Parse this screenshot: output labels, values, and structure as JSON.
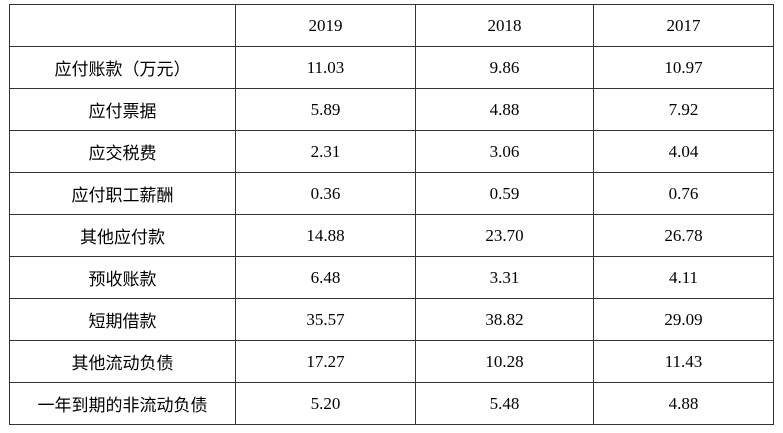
{
  "table": {
    "corner": "",
    "headers": [
      "2019",
      "2018",
      "2017"
    ],
    "rows": [
      {
        "label": "应付账款（万元）",
        "values": [
          "11.03",
          "9.86",
          "10.97"
        ]
      },
      {
        "label": "应付票据",
        "values": [
          "5.89",
          "4.88",
          "7.92"
        ]
      },
      {
        "label": "应交税费",
        "values": [
          "2.31",
          "3.06",
          "4.04"
        ]
      },
      {
        "label": "应付职工薪酬",
        "values": [
          "0.36",
          "0.59",
          "0.76"
        ]
      },
      {
        "label": "其他应付款",
        "values": [
          "14.88",
          "23.70",
          "26.78"
        ]
      },
      {
        "label": "预收账款",
        "values": [
          "6.48",
          "3.31",
          "4.11"
        ]
      },
      {
        "label": "短期借款",
        "values": [
          "35.57",
          "38.82",
          "29.09"
        ]
      },
      {
        "label": "其他流动负债",
        "values": [
          "17.27",
          "10.28",
          "11.43"
        ]
      },
      {
        "label": "一年到期的非流动负债",
        "values": [
          "5.20",
          "5.48",
          "4.88"
        ]
      }
    ]
  }
}
